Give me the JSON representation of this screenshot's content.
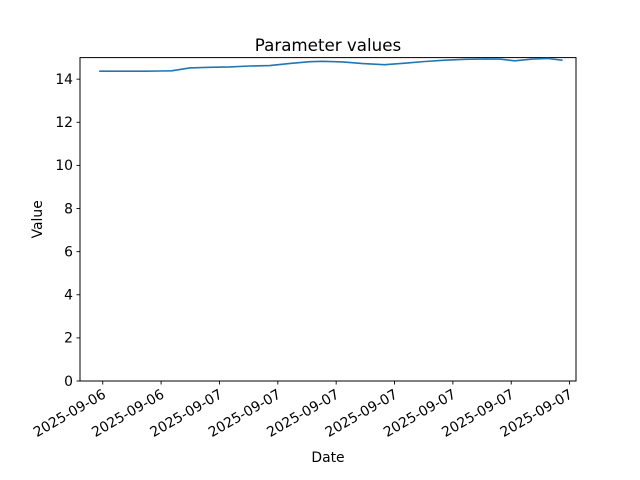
{
  "chart_data": {
    "type": "line",
    "title": "Parameter values",
    "xlabel": "Date",
    "ylabel": "Value",
    "grid": false,
    "legend": "none",
    "line_color": "#1f77b4",
    "background_color": "#ffffff",
    "ylim": [
      0,
      15
    ],
    "xlim_tick_units": [
      -0.39,
      8.11
    ],
    "y_ticks": [
      0,
      2,
      4,
      6,
      8,
      10,
      12,
      14
    ],
    "x_tick_labels": [
      "2025-09-06",
      "2025-09-06",
      "2025-09-07",
      "2025-09-07",
      "2025-09-07",
      "2025-09-07",
      "2025-09-07",
      "2025-09-07",
      "2025-09-07"
    ],
    "x_tick_rotation_deg": 30,
    "series": [
      {
        "name": "parameter-values",
        "x": [
          -0.05,
          0.21,
          0.46,
          0.72,
          0.98,
          1.18,
          1.49,
          1.83,
          2.18,
          2.52,
          2.86,
          3.21,
          3.55,
          3.77,
          4.11,
          4.46,
          4.83,
          5.18,
          5.52,
          5.86,
          6.21,
          6.55,
          6.81,
          7.06,
          7.36,
          7.63,
          7.87
        ],
        "values": [
          14.37,
          14.37,
          14.37,
          14.37,
          14.38,
          14.39,
          14.52,
          14.55,
          14.57,
          14.61,
          14.63,
          14.73,
          14.81,
          14.83,
          14.8,
          14.72,
          14.67,
          14.74,
          14.82,
          14.88,
          14.92,
          14.94,
          14.93,
          14.85,
          14.93,
          14.96,
          14.88
        ]
      }
    ]
  }
}
